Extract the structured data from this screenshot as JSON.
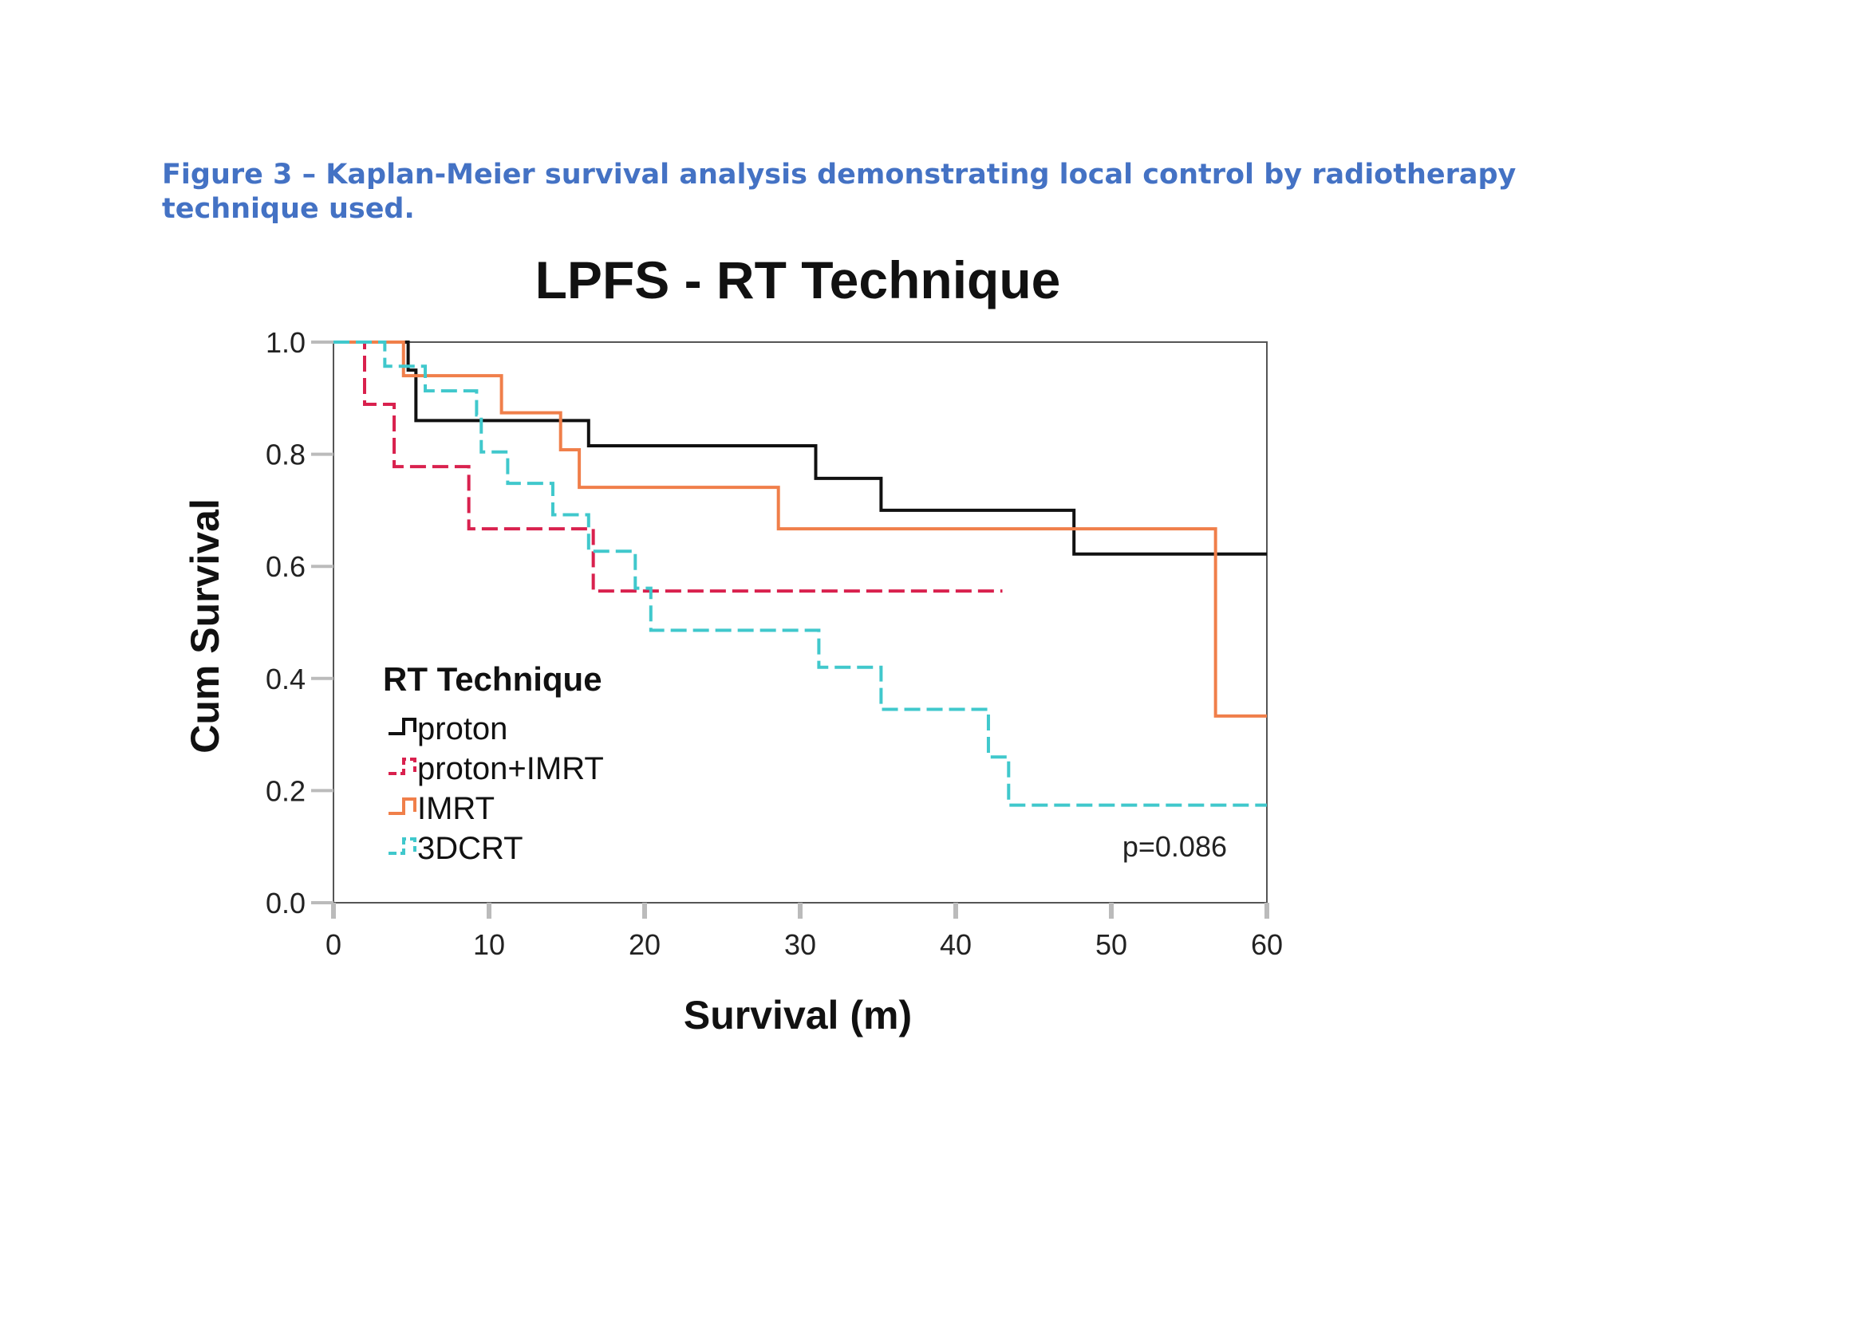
{
  "caption": "Figure 3 – Kaplan-Meier survival analysis demonstrating local control by radiotherapy technique used.",
  "chart_data": {
    "type": "line",
    "subtype": "kaplan-meier step",
    "title": "LPFS - RT Technique",
    "xlabel": "Survival (m)",
    "ylabel": "Cum Survival",
    "xlim": [
      0,
      60
    ],
    "ylim": [
      0,
      1.0
    ],
    "xticks": [
      "0",
      "10",
      "20",
      "30",
      "40",
      "50",
      "60"
    ],
    "yticks": [
      "0.0",
      "0.2",
      "0.4",
      "0.6",
      "0.8",
      "1.0"
    ],
    "legend_title": "RT Technique",
    "legend_position": "lower-left",
    "annotation": "p=0.086",
    "grid": false,
    "series": [
      {
        "name": "proton",
        "color": "#111111",
        "dashed": false,
        "steps": [
          [
            0,
            1.0
          ],
          [
            4.8,
            0.95
          ],
          [
            5.3,
            0.86
          ],
          [
            16.4,
            0.815
          ],
          [
            31.0,
            0.757
          ],
          [
            35.2,
            0.7
          ],
          [
            47.6,
            0.622
          ],
          [
            60,
            0.622
          ]
        ]
      },
      {
        "name": "proton+IMRT",
        "color": "#d9214e",
        "dashed": true,
        "steps": [
          [
            0,
            1.0
          ],
          [
            2.0,
            0.889
          ],
          [
            3.9,
            0.778
          ],
          [
            8.7,
            0.667
          ],
          [
            16.7,
            0.556
          ],
          [
            43.0,
            0.556
          ]
        ]
      },
      {
        "name": "IMRT",
        "color": "#f07f4a",
        "dashed": false,
        "steps": [
          [
            0,
            1.0
          ],
          [
            4.5,
            0.94
          ],
          [
            10.8,
            0.874
          ],
          [
            14.6,
            0.808
          ],
          [
            15.8,
            0.741
          ],
          [
            28.6,
            0.667
          ],
          [
            56.7,
            0.333
          ],
          [
            60,
            0.333
          ]
        ]
      },
      {
        "name": "3DCRT",
        "color": "#40c8cc",
        "dashed": true,
        "steps": [
          [
            0,
            1.0
          ],
          [
            3.3,
            0.957
          ],
          [
            5.9,
            0.913
          ],
          [
            9.2,
            0.87
          ],
          [
            9.5,
            0.804
          ],
          [
            11.2,
            0.748
          ],
          [
            14.1,
            0.692
          ],
          [
            16.4,
            0.627
          ],
          [
            19.4,
            0.561
          ],
          [
            20.4,
            0.486
          ],
          [
            31.2,
            0.42
          ],
          [
            35.2,
            0.345
          ],
          [
            42.1,
            0.26
          ],
          [
            43.4,
            0.174
          ],
          [
            60,
            0.174
          ]
        ]
      }
    ]
  }
}
